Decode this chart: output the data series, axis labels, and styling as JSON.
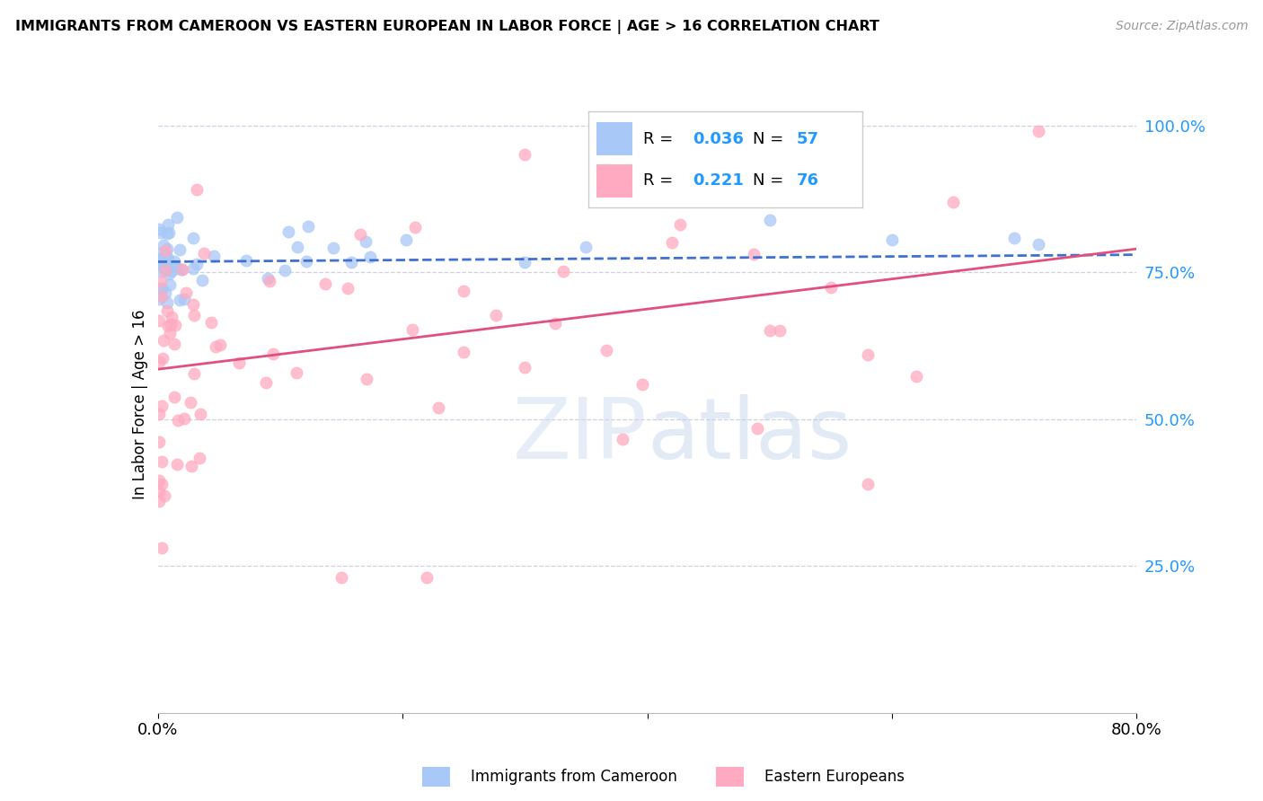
{
  "title": "IMMIGRANTS FROM CAMEROON VS EASTERN EUROPEAN IN LABOR FORCE | AGE > 16 CORRELATION CHART",
  "source": "Source: ZipAtlas.com",
  "ylabel": "In Labor Force | Age > 16",
  "x_min": 0.0,
  "x_max": 0.8,
  "y_min": 0.0,
  "y_max": 1.05,
  "y_tick_labels_right": [
    "100.0%",
    "75.0%",
    "50.0%",
    "25.0%"
  ],
  "y_tick_vals": [
    1.0,
    0.75,
    0.5,
    0.25
  ],
  "legend_r_blue": "0.036",
  "legend_n_blue": "57",
  "legend_r_pink": "0.221",
  "legend_n_pink": "76",
  "blue_color": "#a8c8f8",
  "pink_color": "#ffaac0",
  "blue_line_color": "#4070d0",
  "pink_line_color": "#e05080",
  "grid_color": "#d0d0e0",
  "axis_label_color": "#2299ff",
  "blue_trend_x": [
    0.0,
    0.8
  ],
  "blue_trend_y": [
    0.768,
    0.78
  ],
  "pink_trend_x": [
    0.0,
    0.8
  ],
  "pink_trend_y": [
    0.585,
    0.79
  ]
}
